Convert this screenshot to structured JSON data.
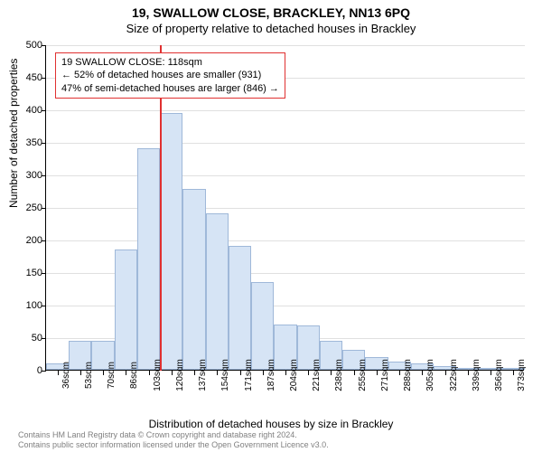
{
  "chart": {
    "type": "histogram",
    "title": "19, SWALLOW CLOSE, BRACKLEY, NN13 6PQ",
    "subtitle": "Size of property relative to detached houses in Brackley",
    "y_axis_title": "Number of detached properties",
    "x_axis_title": "Distribution of detached houses by size in Brackley",
    "ylim": [
      0,
      500
    ],
    "ytick_step": 50,
    "yticks": [
      0,
      50,
      100,
      150,
      200,
      250,
      300,
      350,
      400,
      450,
      500
    ],
    "xticks": [
      "36sqm",
      "53sqm",
      "70sqm",
      "86sqm",
      "103sqm",
      "120sqm",
      "137sqm",
      "154sqm",
      "171sqm",
      "187sqm",
      "204sqm",
      "221sqm",
      "238sqm",
      "255sqm",
      "271sqm",
      "288sqm",
      "305sqm",
      "322sqm",
      "339sqm",
      "356sqm",
      "373sqm"
    ],
    "values": [
      10,
      45,
      45,
      185,
      340,
      395,
      278,
      240,
      190,
      135,
      70,
      68,
      45,
      30,
      20,
      12,
      10,
      5,
      3,
      2,
      1
    ],
    "bar_fill": "#d6e4f5",
    "bar_border": "#9fb8d9",
    "grid_color": "#e0e0e0",
    "background_color": "#ffffff",
    "reference_line": {
      "index": 5,
      "color": "#e03030"
    },
    "annotation": {
      "line1": "19 SWALLOW CLOSE: 118sqm",
      "line2": "← 52% of detached houses are smaller (931)",
      "line3": "47% of semi-detached houses are larger (846) →",
      "border_color": "#e03030"
    },
    "footer_line1": "Contains HM Land Registry data © Crown copyright and database right 2024.",
    "footer_line2": "Contains public sector information licensed under the Open Government Licence v3.0.",
    "title_fontsize": 14,
    "subtitle_fontsize": 13,
    "axis_title_fontsize": 12,
    "tick_fontsize": 11,
    "footer_color": "#808080"
  }
}
